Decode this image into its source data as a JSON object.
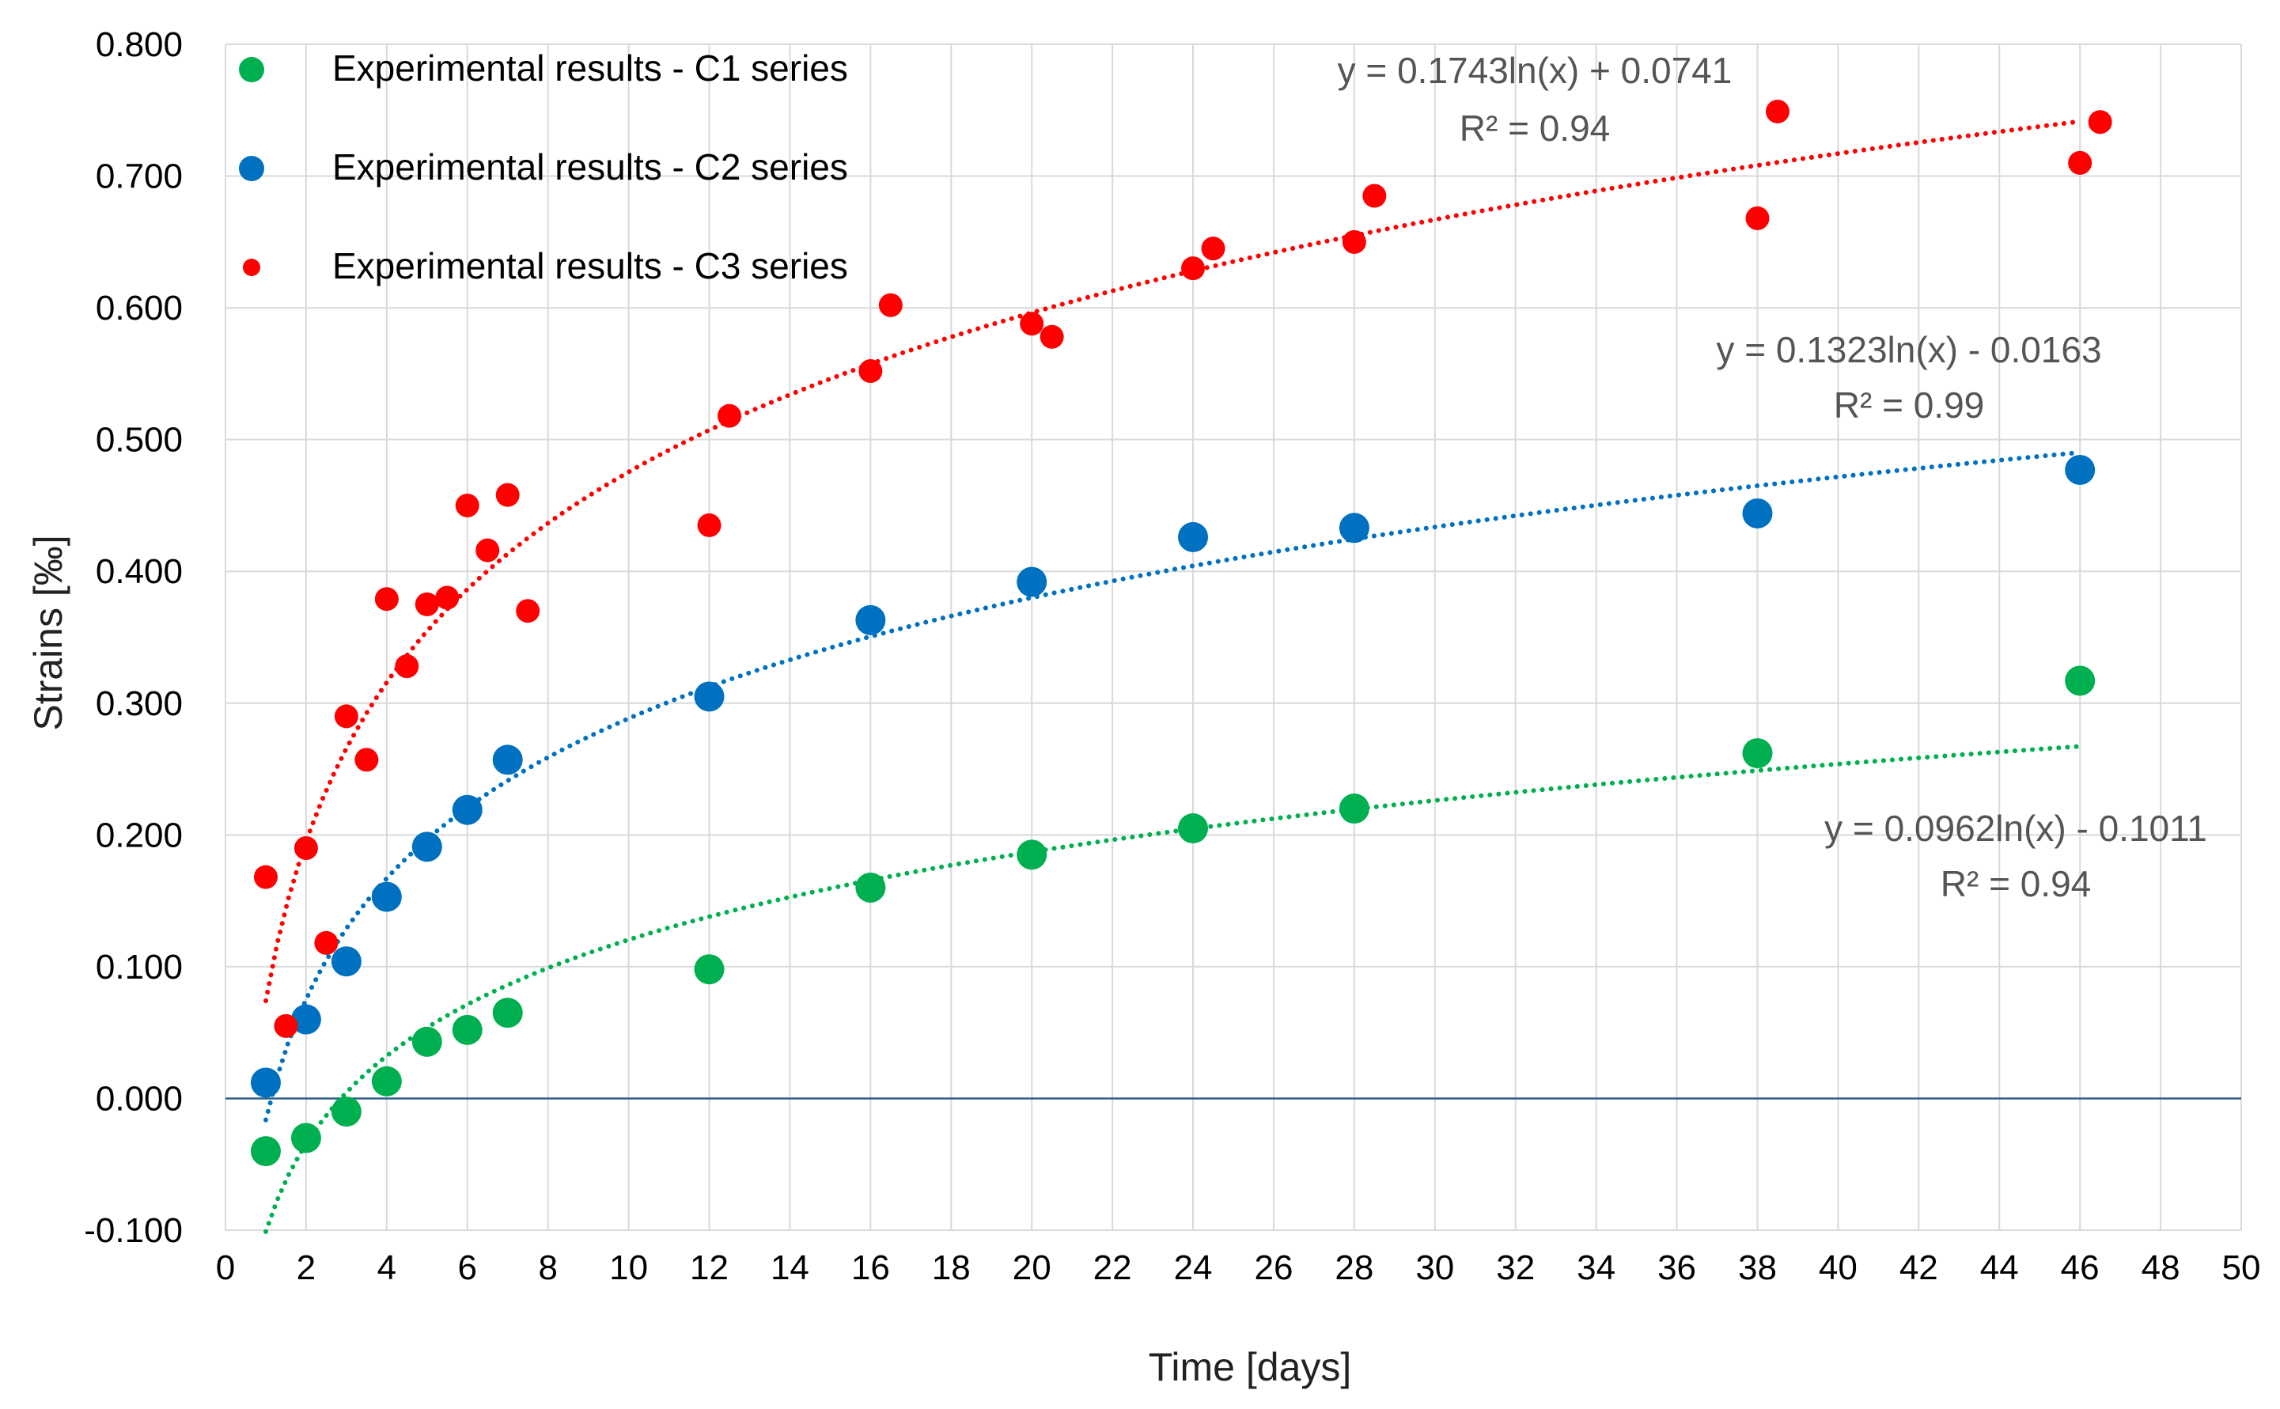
{
  "chart_data": {
    "type": "scatter",
    "title": "",
    "xlabel": "Time [days]",
    "ylabel": "Strains [‰]",
    "xlim": [
      0,
      50
    ],
    "ylim": [
      -0.1,
      0.8
    ],
    "x_ticks": [
      0,
      2,
      4,
      6,
      8,
      10,
      12,
      14,
      16,
      18,
      20,
      22,
      24,
      26,
      28,
      30,
      32,
      34,
      36,
      38,
      40,
      42,
      44,
      46,
      48,
      50
    ],
    "x_tick_labels": [
      "0",
      "2",
      "4",
      "6",
      "8",
      "10",
      "12",
      "14",
      "16",
      "18",
      "20",
      "22",
      "24",
      "26",
      "28",
      "30",
      "32",
      "34",
      "36",
      "38",
      "40",
      "42",
      "44",
      "46",
      "48",
      "50"
    ],
    "y_ticks": [
      -0.1,
      0,
      0.1,
      0.2,
      0.3,
      0.4,
      0.5,
      0.6,
      0.7,
      0.8
    ],
    "y_tick_labels": [
      "-0.100",
      "0.000",
      "0.100",
      "0.200",
      "0.300",
      "0.400",
      "0.500",
      "0.600",
      "0.700",
      "0.800"
    ],
    "grid": true,
    "legend_position": "top-left",
    "series": [
      {
        "name": "Experimental results - C1 series",
        "color": "#00b050",
        "marker_size": "large",
        "x": [
          1,
          2,
          3,
          4,
          5,
          6,
          7,
          12,
          16,
          20,
          24,
          28,
          38,
          46
        ],
        "y": [
          -0.04,
          -0.03,
          -0.01,
          0.013,
          0.043,
          0.052,
          0.065,
          0.098,
          0.16,
          0.185,
          0.205,
          0.22,
          0.262,
          0.317
        ],
        "trendline": {
          "type": "logarithmic",
          "a": 0.0962,
          "b": -0.1011,
          "x_range": [
            1,
            46
          ],
          "equation": "y = 0.0962ln(x) - 0.1011",
          "r_squared": "R² = 0.94"
        }
      },
      {
        "name": "Experimental results - C2 series",
        "color": "#0070c0",
        "marker_size": "large",
        "x": [
          1,
          2,
          3,
          4,
          5,
          6,
          7,
          12,
          16,
          20,
          24,
          28,
          38,
          46
        ],
        "y": [
          0.012,
          0.06,
          0.104,
          0.153,
          0.191,
          0.219,
          0.257,
          0.305,
          0.363,
          0.392,
          0.426,
          0.433,
          0.444,
          0.477
        ],
        "trendline": {
          "type": "logarithmic",
          "a": 0.1323,
          "b": -0.0163,
          "x_range": [
            1,
            46
          ],
          "equation": "y = 0.1323ln(x) - 0.0163",
          "r_squared": "R² = 0.99"
        }
      },
      {
        "name": "Experimental results - C3 series",
        "color": "#ff0000",
        "marker_size": "small",
        "x": [
          1,
          1.5,
          2,
          2.5,
          3,
          3.5,
          4,
          4.5,
          5,
          5.5,
          6,
          6.5,
          7,
          7.5,
          12,
          12.5,
          16,
          16.5,
          20,
          20.5,
          24,
          24.5,
          28,
          28.5,
          38,
          38.5,
          46,
          46.5
        ],
        "y": [
          0.168,
          0.055,
          0.19,
          0.118,
          0.29,
          0.257,
          0.379,
          0.328,
          0.375,
          0.38,
          0.45,
          0.416,
          0.458,
          0.37,
          0.435,
          0.518,
          0.552,
          0.602,
          0.588,
          0.578,
          0.63,
          0.645,
          0.65,
          0.685,
          0.668,
          0.749,
          0.71,
          0.741
        ],
        "trendline": {
          "type": "logarithmic",
          "a": 0.1743,
          "b": 0.0741,
          "x_range": [
            1,
            46
          ],
          "equation": "y = 0.1743ln(x) + 0.0741",
          "r_squared": "R² = 0.94"
        }
      }
    ]
  }
}
